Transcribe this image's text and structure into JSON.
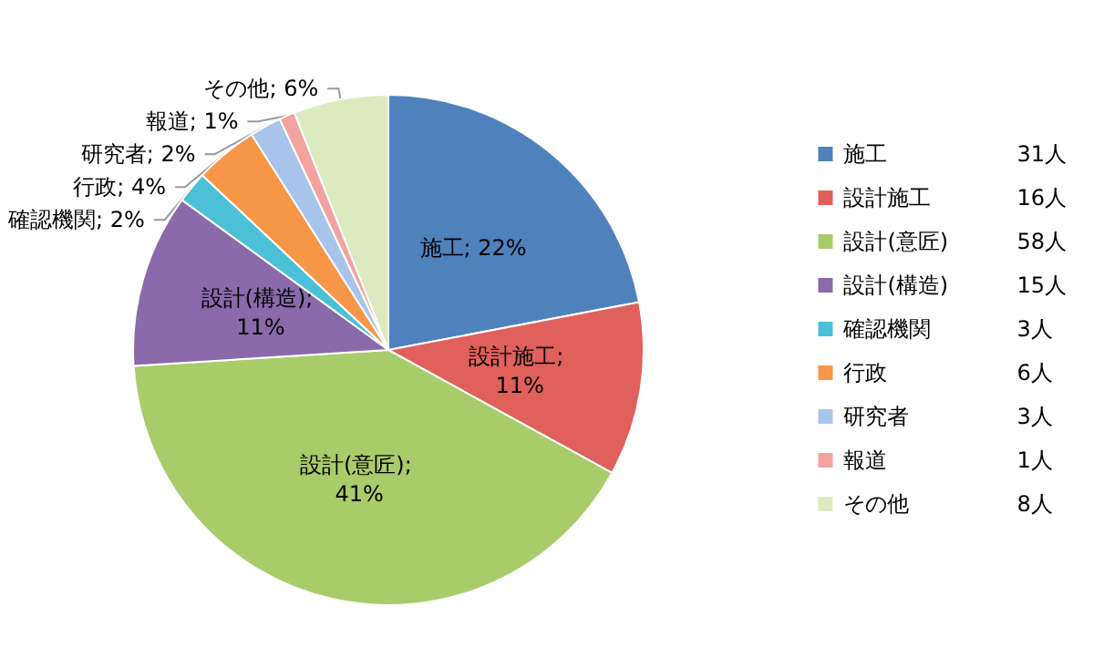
{
  "chart_data": {
    "type": "pie",
    "categories": [
      "施工",
      "設計施工",
      "設計(意匠)",
      "設計(構造)",
      "確認機関",
      "行政",
      "研究者",
      "報道",
      "その他"
    ],
    "values": [
      22,
      11,
      41,
      11,
      2,
      4,
      2,
      1,
      6
    ],
    "colors": [
      "#4f81bd",
      "#e0605c",
      "#a9cc6a",
      "#8a6aaa",
      "#4bc0d6",
      "#f79646",
      "#a9c4ea",
      "#f2a3a0",
      "#dcebbf"
    ],
    "value_labels": [
      "施工; 22%",
      "設計施工; 11%",
      "設計(意匠); 41%",
      "設計(構造); 11%",
      "確認機関; 2%",
      "行政; 4%",
      "研究者; 2%",
      "報道; 1%",
      "その他; 6%"
    ],
    "annotations": [
      "31人",
      "16人",
      "58人",
      "15人",
      "3人",
      "6人",
      "3人",
      "1人",
      "8人"
    ],
    "legend": "right"
  }
}
